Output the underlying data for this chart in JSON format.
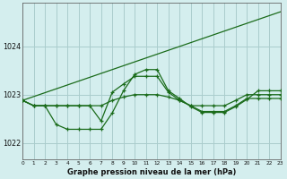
{
  "title": "Graphe pression niveau de la mer (hPa)",
  "bg_color": "#d4eeee",
  "grid_color": "#aacccc",
  "line_color": "#1a6b1a",
  "xlim": [
    0,
    23
  ],
  "ylim": [
    1021.65,
    1024.9
  ],
  "yticks": [
    1022,
    1023,
    1024
  ],
  "xticks": [
    0,
    1,
    2,
    3,
    4,
    5,
    6,
    7,
    8,
    9,
    10,
    11,
    12,
    13,
    14,
    15,
    16,
    17,
    18,
    19,
    20,
    21,
    22,
    23
  ],
  "series1_x": [
    0,
    1,
    2,
    3,
    4,
    5,
    6,
    7,
    8,
    9,
    10,
    11,
    12,
    13,
    14,
    15,
    16,
    17,
    18,
    19,
    20,
    21,
    22,
    23
  ],
  "series1_y": [
    1022.88,
    1022.77,
    1022.77,
    1022.38,
    1022.28,
    1022.28,
    1022.28,
    1022.28,
    1022.62,
    1023.08,
    1023.42,
    1023.52,
    1023.52,
    1023.08,
    1022.92,
    1022.75,
    1022.63,
    1022.63,
    1022.63,
    1022.75,
    1022.9,
    1023.08,
    1023.08,
    1023.08
  ],
  "series2_x": [
    0,
    1,
    2,
    3,
    4,
    5,
    6,
    7,
    8,
    9,
    10,
    11,
    12,
    13,
    14,
    15,
    16,
    17,
    18,
    19,
    20,
    21,
    22,
    23
  ],
  "series2_y": [
    1022.88,
    1022.77,
    1022.77,
    1022.77,
    1022.77,
    1022.77,
    1022.77,
    1022.45,
    1023.05,
    1023.22,
    1023.38,
    1023.38,
    1023.38,
    1023.05,
    1022.88,
    1022.77,
    1022.65,
    1022.65,
    1022.65,
    1022.77,
    1022.92,
    1022.92,
    1022.92,
    1022.92
  ],
  "series3_x": [
    0,
    23
  ],
  "series3_y": [
    1022.88,
    1024.72
  ],
  "series4_x": [
    0,
    1,
    2,
    3,
    4,
    5,
    6,
    7,
    8,
    9,
    10,
    11,
    12,
    13,
    14,
    15,
    16,
    17,
    18,
    19,
    20,
    21,
    22,
    23
  ],
  "series4_y": [
    1022.88,
    1022.77,
    1022.77,
    1022.77,
    1022.77,
    1022.77,
    1022.77,
    1022.77,
    1022.88,
    1022.95,
    1023.0,
    1023.0,
    1023.0,
    1022.95,
    1022.88,
    1022.77,
    1022.77,
    1022.77,
    1022.77,
    1022.88,
    1023.0,
    1023.0,
    1023.0,
    1023.0
  ]
}
